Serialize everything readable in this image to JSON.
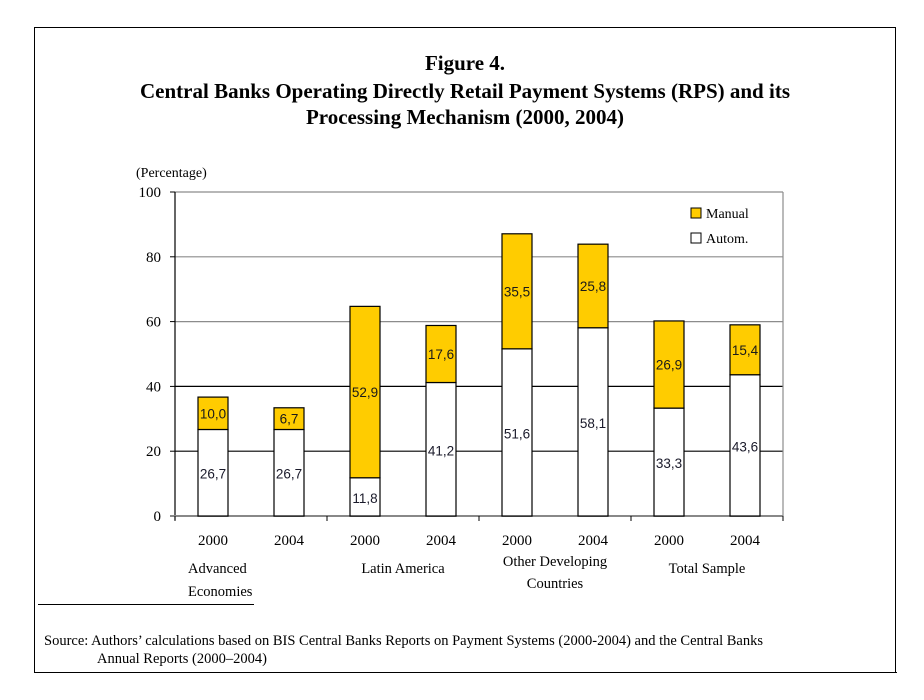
{
  "figure": {
    "number_label": "Figure 4.",
    "title_line1": "Central Banks Operating Directly Retail Payment Systems (RPS) and its",
    "title_line2": "Processing Mechanism (2000, 2004)"
  },
  "chart_data": {
    "type": "bar",
    "stacked": true,
    "title": "Central Banks Operating Directly Retail Payment Systems (RPS) and its Processing Mechanism (2000, 2004)",
    "ylabel": "(Percentage)",
    "xlabel": "",
    "ylim": [
      0,
      100
    ],
    "yticks": [
      0,
      20,
      40,
      60,
      80,
      100
    ],
    "grid": true,
    "legend_position": "top-right",
    "categories": [
      "2000",
      "2004",
      "2000",
      "2004",
      "2000",
      "2004",
      "2000",
      "2004"
    ],
    "groups": [
      {
        "label_lines": [
          "Advanced",
          "Economies"
        ],
        "categories": [
          0,
          1
        ]
      },
      {
        "label_lines": [
          "Latin America"
        ],
        "categories": [
          2,
          3
        ]
      },
      {
        "label_lines": [
          "Other Developing",
          "Countries"
        ],
        "categories": [
          4,
          5
        ]
      },
      {
        "label_lines": [
          "Total Sample"
        ],
        "categories": [
          6,
          7
        ]
      }
    ],
    "series": [
      {
        "name": "Autom.",
        "color": "#ffffff",
        "values": [
          26.7,
          26.7,
          11.8,
          41.2,
          51.6,
          58.1,
          33.3,
          43.6
        ],
        "labels": [
          "26,7",
          "26,7",
          "11,8",
          "41,2",
          "51,6",
          "58,1",
          "33,3",
          "43,6"
        ]
      },
      {
        "name": "Manual",
        "color": "#ffcc00",
        "values": [
          10.0,
          6.7,
          52.9,
          17.6,
          35.5,
          25.8,
          26.9,
          15.4
        ],
        "labels": [
          "10,0",
          "6,7",
          "52,9",
          "17,6",
          "35,5",
          "25,8",
          "26,9",
          "15,4"
        ]
      }
    ],
    "legend": [
      "Manual",
      "Autom."
    ]
  },
  "source": {
    "line1": "Source: Authors’ calculations based on BIS Central Banks Reports on Payment Systems (2000-2004) and the Central Banks",
    "line2": "Annual Reports (2000–2004)"
  }
}
